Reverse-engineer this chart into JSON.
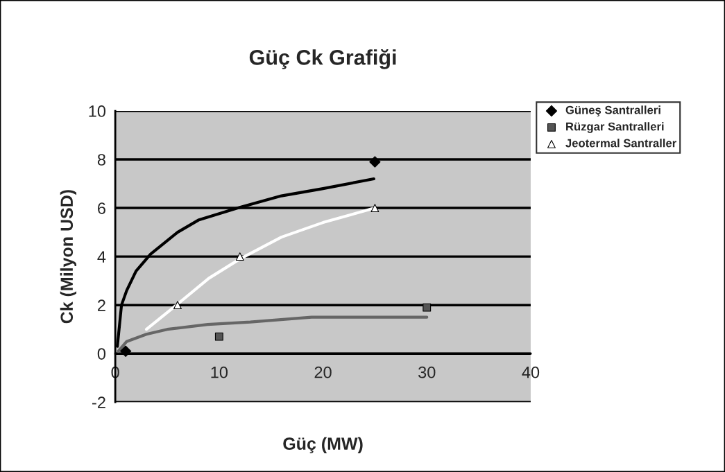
{
  "chart_data": {
    "type": "scatter",
    "title": "Güç Ck Grafiği",
    "xlabel": "Güç (MW)",
    "ylabel": "Ck (Milyon USD)",
    "xlim": [
      0,
      40
    ],
    "xticks": [
      0,
      10,
      20,
      30,
      40
    ],
    "ylim": [
      -2,
      10
    ],
    "yticks": [
      -2,
      0,
      2,
      4,
      6,
      8,
      10
    ],
    "grid": "y",
    "legend": "top right",
    "series": [
      {
        "name": "Güneş Santralleri",
        "color": "#000000",
        "marker": "diamond",
        "x": [
          1,
          25
        ],
        "values": [
          0.1,
          7.9
        ]
      },
      {
        "name": "Rüzgar Santralleri",
        "color": "#555555",
        "marker": "square",
        "x": [
          10,
          30
        ],
        "values": [
          0.7,
          1.9
        ]
      },
      {
        "name": "Jeotermal Santraller",
        "color": "#ffffff",
        "marker": "triangle",
        "x": [
          6,
          12,
          25
        ],
        "values": [
          2,
          4,
          6
        ]
      },
      {
        "type": "line",
        "color": "#000000",
        "marker": "none",
        "x": [
          0.2,
          0.6,
          1.1,
          2,
          3.4,
          6,
          8,
          11.8,
          16,
          20,
          24.9
        ],
        "values": [
          0.3,
          2.0,
          2.6,
          3.4,
          4.1,
          5.0,
          5.5,
          6.0,
          6.5,
          6.8,
          7.2
        ]
      },
      {
        "type": "line",
        "color": "#666666",
        "marker": "none",
        "x": [
          0.3,
          1.1,
          3,
          5,
          8.9,
          13,
          18.9,
          24,
          30
        ],
        "values": [
          0.1,
          0.5,
          0.8,
          1.0,
          1.2,
          1.3,
          1.5,
          1.5,
          1.5
        ]
      },
      {
        "type": "line",
        "color": "#ffffff",
        "marker": "none",
        "x": [
          3,
          5.6,
          9,
          12,
          16,
          20,
          25
        ],
        "values": [
          1.0,
          1.9,
          3.1,
          3.9,
          4.8,
          5.4,
          6.0
        ]
      }
    ]
  }
}
